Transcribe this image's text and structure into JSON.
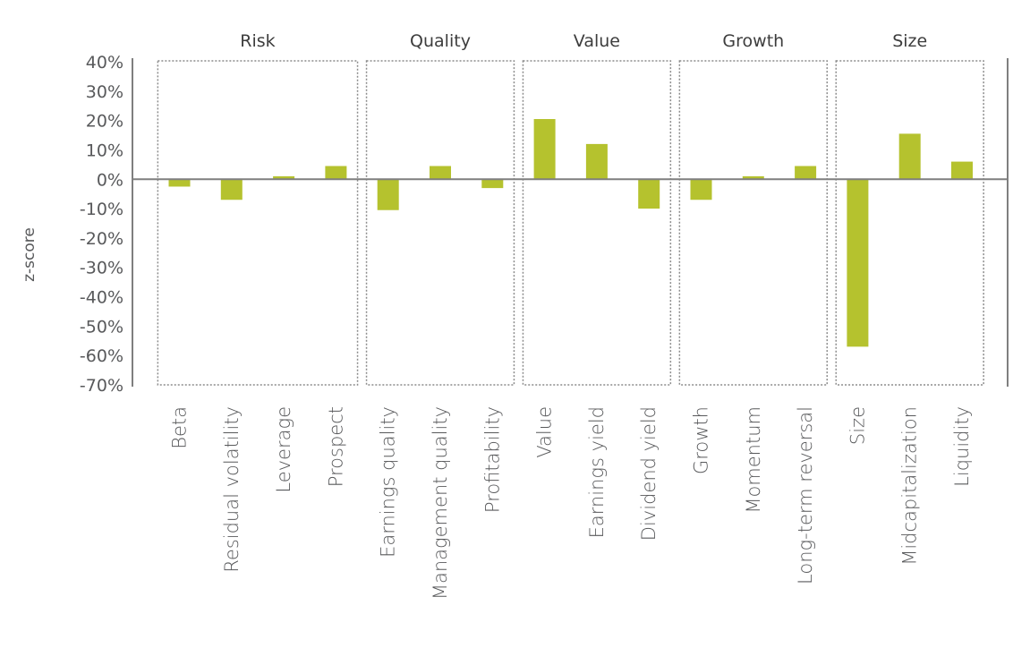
{
  "chart_data": {
    "type": "bar",
    "title": "",
    "xlabel": "",
    "ylabel": "z-score",
    "ylim": [
      -70,
      40
    ],
    "y_ticks": [
      40,
      30,
      20,
      10,
      0,
      -10,
      -20,
      -30,
      -40,
      -50,
      -60,
      -70
    ],
    "y_tick_labels": [
      "40%",
      "30%",
      "20%",
      "10%",
      "0%",
      "-10%",
      "-20%",
      "-30%",
      "-40%",
      "-50%",
      "-60%",
      "-70%"
    ],
    "categories": [
      "Beta",
      "Residual volatility",
      "Leverage",
      "Prospect",
      "Earnings quality",
      "Management quality",
      "Profitability",
      "Value",
      "Earnings yield",
      "Dividend yield",
      "Growth",
      "Momentum",
      "Long-term reversal",
      "Size",
      "Midcapitalization",
      "Liquidity"
    ],
    "values": [
      -2.5,
      -7,
      1,
      4.5,
      -10.5,
      4.5,
      -3,
      20.5,
      12,
      -10,
      -7,
      1,
      4.5,
      -57,
      15.5,
      6
    ],
    "groups": [
      {
        "name": "Risk",
        "start": 0,
        "end": 3
      },
      {
        "name": "Quality",
        "start": 4,
        "end": 6
      },
      {
        "name": "Value",
        "start": 7,
        "end": 9
      },
      {
        "name": "Growth",
        "start": 10,
        "end": 12
      },
      {
        "name": "Size",
        "start": 13,
        "end": 15
      }
    ],
    "bar_color": "#b5c22e",
    "grid": false
  }
}
